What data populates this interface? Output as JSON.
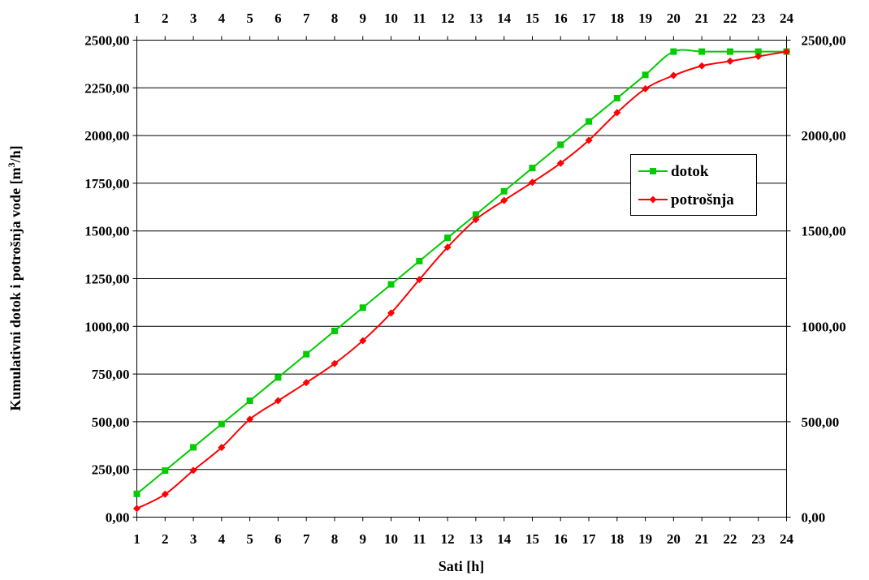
{
  "chart_data": {
    "type": "line",
    "x": [
      1,
      2,
      3,
      4,
      5,
      6,
      7,
      8,
      9,
      10,
      11,
      12,
      13,
      14,
      15,
      16,
      17,
      18,
      19,
      20,
      21,
      22,
      23,
      24
    ],
    "x_tick_labels": [
      "1",
      "2",
      "3",
      "4",
      "5",
      "6",
      "7",
      "8",
      "9",
      "10",
      "11",
      "12",
      "13",
      "14",
      "15",
      "16",
      "17",
      "18",
      "19",
      "20",
      "21",
      "22",
      "23",
      "24"
    ],
    "series": [
      {
        "name": "dotok",
        "color": "#00cc00",
        "marker": "square",
        "values": [
          122,
          244,
          366,
          488,
          610,
          732,
          854,
          976,
          1098,
          1220,
          1342,
          1464,
          1586,
          1708,
          1830,
          1952,
          2074,
          2196,
          2318,
          2440,
          2440,
          2440,
          2440,
          2440
        ]
      },
      {
        "name": "potrošnja",
        "color": "#ff0000",
        "marker": "diamond",
        "values": [
          45,
          120,
          245,
          365,
          513,
          610,
          705,
          805,
          925,
          1070,
          1245,
          1415,
          1560,
          1660,
          1755,
          1855,
          1975,
          2120,
          2245,
          2315,
          2365,
          2390,
          2415,
          2440
        ]
      }
    ],
    "xlabel": "Sati [h]",
    "ylabel": "Kumulativni dotok i potrošnja vode [m³/h]",
    "ylabel_parts": {
      "main": "Kumulativni dotok i potrošnja vode [m",
      "sup": "3",
      "tail": "/h]"
    },
    "ylim": [
      0,
      2500
    ],
    "y_tick_values": [
      0,
      250,
      500,
      750,
      1000,
      1250,
      1500,
      1750,
      2000,
      2250,
      2500
    ],
    "y_tick_labels": [
      "0,00",
      "250,00",
      "500,00",
      "750,00",
      "1000,00",
      "1250,00",
      "1500,00",
      "1750,00",
      "2000,00",
      "2250,00",
      "2500,00"
    ],
    "right_y_tick_values": [
      0,
      500,
      1000,
      1500,
      2000,
      2500
    ],
    "right_y_tick_labels": [
      "0,00",
      "500,00",
      "1000,00",
      "1500,00",
      "2000,00",
      "2500,00"
    ],
    "grid": "horizontal",
    "legend_position": "right"
  }
}
